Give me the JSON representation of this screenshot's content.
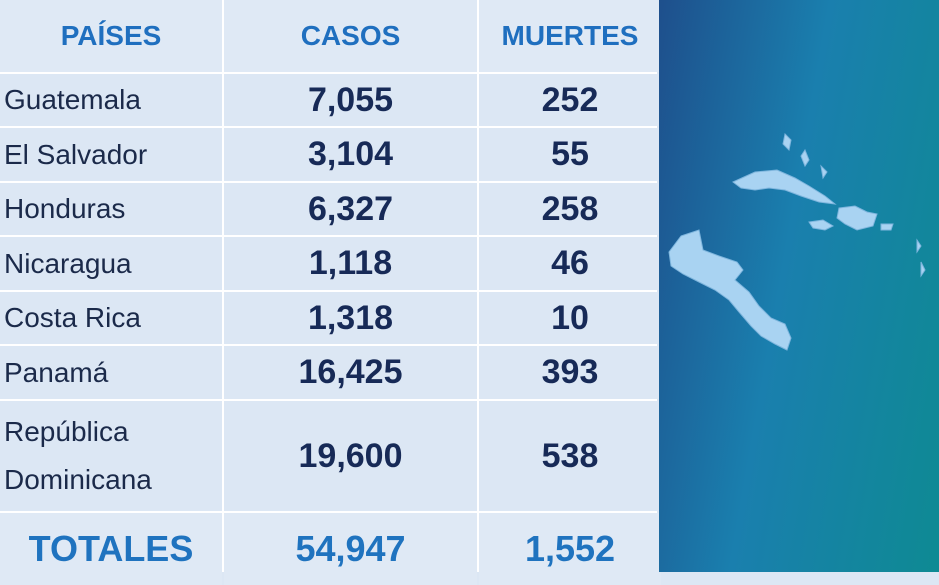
{
  "header": [
    "PAÍSES",
    "CASOS",
    "MUERTES"
  ],
  "rows": [
    [
      "Guatemala",
      "7,055",
      "252"
    ],
    [
      "El Salvador",
      "3,104",
      "55"
    ],
    [
      "Honduras",
      "6,327",
      "258"
    ],
    [
      "Nicaragua",
      "1,118",
      "46"
    ],
    [
      "Costa Rica",
      "1,318",
      "10"
    ],
    [
      "Panamá",
      "16,425",
      "393"
    ],
    [
      "República Dominicana",
      "19,600",
      "538"
    ]
  ],
  "totals": [
    "TOTALES",
    "54,947",
    "1,552"
  ]
}
